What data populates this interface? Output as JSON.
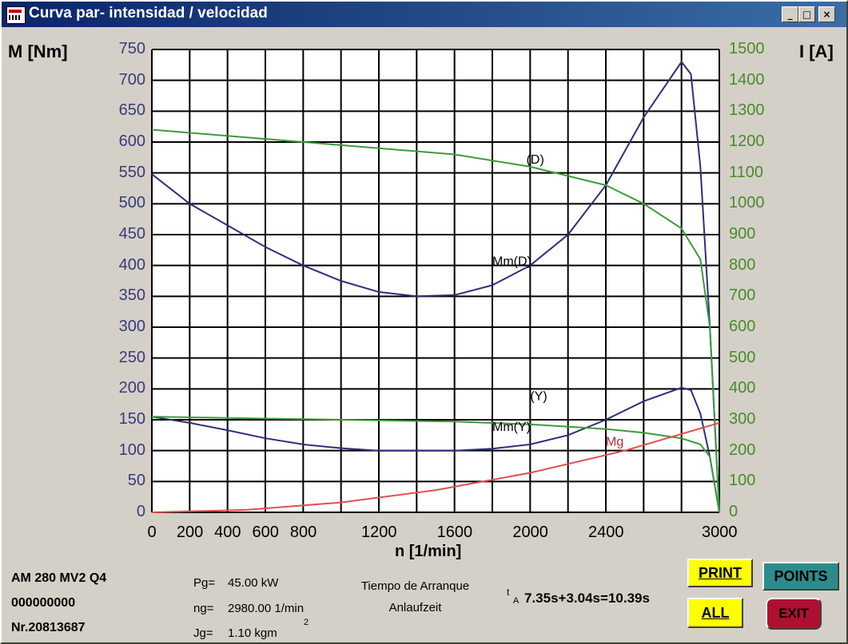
{
  "window": {
    "title": "Curva par- intensidad / velocidad",
    "min_glyph": "_",
    "max_glyph": "□",
    "close_glyph": "×"
  },
  "axes": {
    "left_title": "M [Nm]",
    "right_title": "I [A]",
    "x_title": "n [1/min]",
    "left_ticks": [
      "750",
      "700",
      "650",
      "600",
      "550",
      "500",
      "450",
      "400",
      "350",
      "300",
      "250",
      "200",
      "150",
      "100",
      "50",
      "0"
    ],
    "right_ticks": [
      "1500",
      "1400",
      "1300",
      "1200",
      "1100",
      "1000",
      "900",
      "800",
      "700",
      "600",
      "500",
      "400",
      "300",
      "200",
      "100",
      "0"
    ],
    "x_ticks": [
      "0",
      "200",
      "400",
      "600",
      "800",
      "1200",
      "1600",
      "2000",
      "2400",
      "3000"
    ]
  },
  "colors": {
    "torque_curve": "#2f2f7a",
    "current_curve": "#3e9a3e",
    "load_curve": "#e05050",
    "left_axis_text": "#3b3a7a",
    "right_axis_text": "#4a8a2a",
    "grid": "#000000"
  },
  "chart_data": {
    "type": "line",
    "xlabel": "n [1/min]",
    "ylabel_left": "M [Nm]",
    "ylabel_right": "I [A]",
    "xlim": [
      0,
      3000
    ],
    "ylim_left": [
      0,
      750
    ],
    "ylim_right": [
      0,
      1500
    ],
    "grid": true,
    "series": [
      {
        "name": "Mm(D)",
        "axis": "left",
        "color": "#2f2f7a",
        "x": [
          0,
          200,
          400,
          600,
          800,
          1000,
          1200,
          1400,
          1600,
          1800,
          2000,
          2200,
          2400,
          2600,
          2800,
          2850,
          2900,
          2950,
          3000
        ],
        "y": [
          548,
          500,
          465,
          430,
          400,
          375,
          357,
          350,
          352,
          368,
          400,
          450,
          530,
          640,
          730,
          710,
          560,
          300,
          0
        ]
      },
      {
        "name": "(D)",
        "axis": "right",
        "color": "#3e9a3e",
        "x": [
          0,
          400,
          800,
          1200,
          1600,
          2000,
          2400,
          2600,
          2800,
          2900,
          2950,
          3000
        ],
        "y": [
          1240,
          1220,
          1200,
          1180,
          1160,
          1120,
          1060,
          1000,
          920,
          820,
          600,
          0
        ]
      },
      {
        "name": "Mm(Y)",
        "axis": "left",
        "color": "#2f2f7a",
        "x": [
          0,
          200,
          400,
          600,
          800,
          1000,
          1200,
          1400,
          1600,
          1800,
          2000,
          2200,
          2400,
          2600,
          2800,
          2850,
          2900,
          2950,
          3000
        ],
        "y": [
          155,
          145,
          133,
          120,
          110,
          104,
          100,
          100,
          100,
          103,
          110,
          125,
          150,
          180,
          202,
          198,
          160,
          90,
          0
        ]
      },
      {
        "name": "(Y)",
        "axis": "right",
        "color": "#3e9a3e",
        "x": [
          0,
          400,
          800,
          1200,
          1600,
          2000,
          2400,
          2600,
          2800,
          2900,
          2950,
          3000
        ],
        "y": [
          310,
          306,
          302,
          298,
          294,
          285,
          270,
          258,
          240,
          220,
          180,
          0
        ]
      },
      {
        "name": "Mg",
        "axis": "left",
        "color": "#e05050",
        "x": [
          0,
          500,
          1000,
          1500,
          2000,
          2500,
          3000
        ],
        "y": [
          0,
          4,
          16,
          36,
          64,
          100,
          145
        ]
      }
    ]
  },
  "info": {
    "motor_model": "AM 280 MV2 Q4",
    "serial_zeros": "000000000",
    "number": "Nr.20813687",
    "pg_label": "Pg=",
    "pg_value": "45.00 kW",
    "ng_label": "ng=",
    "ng_value": "2980.00 1/min",
    "jg_label": "Jg=",
    "jg_value": "1.10 kgm",
    "jg_exponent": "2",
    "startup_time_es": "Tiempo de Arranque",
    "startup_time_de": "Anlaufzeit",
    "ta_subscript": "A",
    "ta_prefix": "t",
    "ta_value": "7.35s+3.04s=10.39s"
  },
  "buttons": {
    "print": "PRINT",
    "points": "POINTS",
    "all": "ALL",
    "exit": "EXIT"
  }
}
